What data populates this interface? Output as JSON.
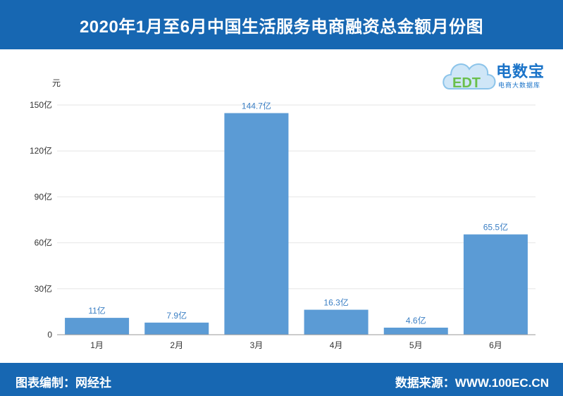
{
  "header": {
    "title": "2020年1月至6月中国生活服务电商融资总金额月份图"
  },
  "logo": {
    "name": "电数宝",
    "subtitle": "电商大数据库",
    "mark": "EDT"
  },
  "footer": {
    "left": "图表编制：网经社",
    "right": "数据来源：WWW.100EC.CN"
  },
  "colors": {
    "bar": "#5b9bd5",
    "label": "#3b7fc4",
    "header": "#1767b2"
  },
  "chart_data": {
    "type": "bar",
    "title": "2020年1月至6月中国生活服务电商融资总金额月份图",
    "ylabel": "元",
    "xlabel": "",
    "categories": [
      "1月",
      "2月",
      "3月",
      "4月",
      "5月",
      "6月"
    ],
    "values": [
      11,
      7.9,
      144.7,
      16.3,
      4.6,
      65.5
    ],
    "data_labels": [
      "11亿",
      "7.9亿",
      "144.7亿",
      "16.3亿",
      "4.6亿",
      "65.5亿"
    ],
    "ylim": [
      0,
      150
    ],
    "yticks": [
      0,
      30,
      60,
      90,
      120,
      150
    ],
    "ytick_labels": [
      "0",
      "30亿",
      "60亿",
      "90亿",
      "120亿",
      "150亿"
    ],
    "grid": true
  }
}
